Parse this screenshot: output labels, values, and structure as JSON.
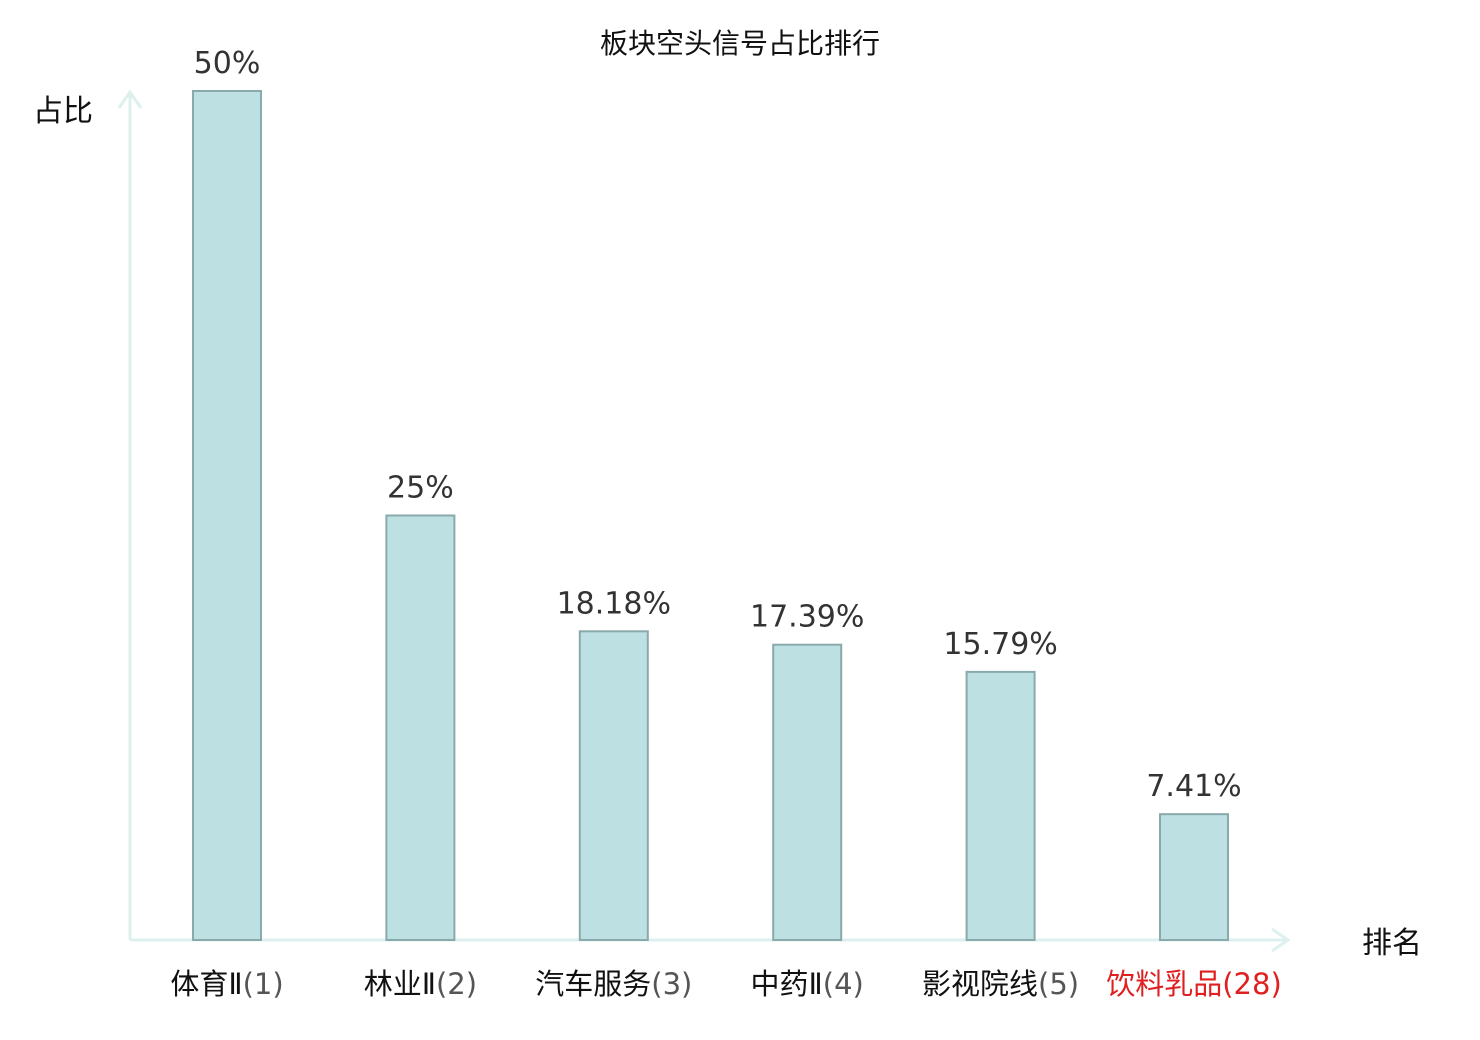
{
  "colors": {
    "bar_fill": "#bde0e2",
    "bar_stroke": "#8aa9ab",
    "axis": "#def0ee",
    "text": "#111111",
    "value_text": "#333333",
    "highlight": "#e02020",
    "rank_text": "#555555"
  },
  "chart_data": {
    "type": "bar",
    "title": "板块空头信号占比排行",
    "ylabel": "占比",
    "xlabel": "排名",
    "ylim": [
      0,
      50
    ],
    "categories": [
      {
        "name": "体育Ⅱ",
        "rank": "(1)",
        "highlight": false
      },
      {
        "name": "林业Ⅱ",
        "rank": "(2)",
        "highlight": false
      },
      {
        "name": "汽车服务",
        "rank": "(3)",
        "highlight": false
      },
      {
        "name": "中药Ⅱ",
        "rank": "(4)",
        "highlight": false
      },
      {
        "name": "影视院线",
        "rank": "(5)",
        "highlight": false
      },
      {
        "name": "饮料乳品",
        "rank": "(28)",
        "highlight": true
      }
    ],
    "values": [
      50,
      25,
      18.18,
      17.39,
      15.79,
      7.41
    ],
    "value_labels": [
      "50%",
      "25%",
      "18.18%",
      "17.39%",
      "15.79%",
      "7.41%"
    ],
    "grid": false,
    "legend": "none"
  }
}
